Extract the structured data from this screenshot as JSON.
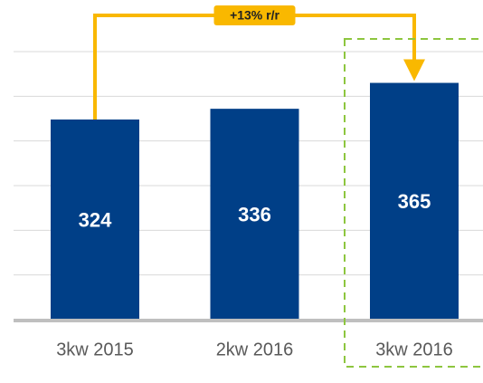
{
  "chart_data": {
    "type": "bar",
    "categories": [
      "3kw 2015",
      "2kw 2016",
      "3kw 2016"
    ],
    "values": [
      324,
      336,
      365
    ],
    "color": "#003f87",
    "ylim": [
      100,
      400
    ],
    "yticks": [
      100,
      150,
      200,
      250,
      300,
      350,
      400
    ],
    "grid": true,
    "annotation": "+13% r/r"
  }
}
